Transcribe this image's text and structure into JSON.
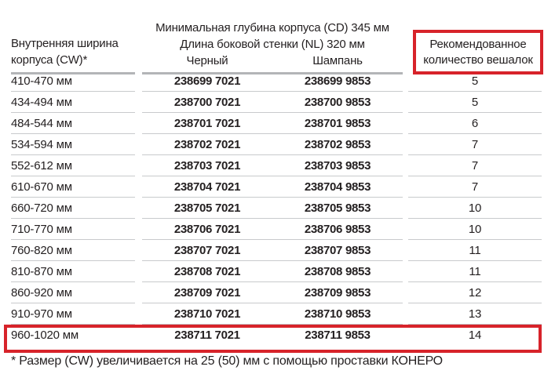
{
  "table": {
    "col1_header_lines": [
      "Внутренняя ширина",
      "корпуса (CW)*"
    ],
    "group_header_line1": "Минимальная глубина корпуса (CD) 345 мм",
    "group_header_line2": "Длина боковой стенки (NL) 320 мм",
    "finish_black_label": "Черный",
    "finish_champagne_label": "Шампань",
    "col4_header_lines": [
      "Рекомендованное",
      "количество вешалок"
    ],
    "rows": [
      {
        "width": "410-470 мм",
        "black": "238699 7021",
        "champagne": "238699 9853",
        "hangers": "5"
      },
      {
        "width": "434-494 мм",
        "black": "238700 7021",
        "champagne": "238700 9853",
        "hangers": "5"
      },
      {
        "width": "484-544 мм",
        "black": "238701 7021",
        "champagne": "238701 9853",
        "hangers": "6"
      },
      {
        "width": "534-594 мм",
        "black": "238702 7021",
        "champagne": "238702 9853",
        "hangers": "7"
      },
      {
        "width": "552-612 мм",
        "black": "238703 7021",
        "champagne": "238703 9853",
        "hangers": "7"
      },
      {
        "width": "610-670 мм",
        "black": "238704 7021",
        "champagne": "238704 9853",
        "hangers": "7"
      },
      {
        "width": "660-720 мм",
        "black": "238705 7021",
        "champagne": "238705 9853",
        "hangers": "10"
      },
      {
        "width": "710-770 мм",
        "black": "238706 7021",
        "champagne": "238706 9853",
        "hangers": "10"
      },
      {
        "width": "760-820 мм",
        "black": "238707 7021",
        "champagne": "238707 9853",
        "hangers": "11"
      },
      {
        "width": "810-870 мм",
        "black": "238708 7021",
        "champagne": "238708 9853",
        "hangers": "11"
      },
      {
        "width": "860-920 мм",
        "black": "238709 7021",
        "champagne": "238709 9853",
        "hangers": "12"
      },
      {
        "width": "910-970 мм",
        "black": "238710 7021",
        "champagne": "238710 9853",
        "hangers": "13"
      },
      {
        "width": "960-1020 мм",
        "black": "238711 7021",
        "champagne": "238711 9853",
        "hangers": "14"
      }
    ],
    "highlighted_row_index": 12
  },
  "footnote": "* Размер (CW) увеличивается на 25 (50) мм с помощью проставки КОНЕРО",
  "colors": {
    "highlight_red": "#d7232a",
    "text": "#231f20",
    "line_thick": "#b3b5b7",
    "line_thin": "#c8cacc"
  }
}
